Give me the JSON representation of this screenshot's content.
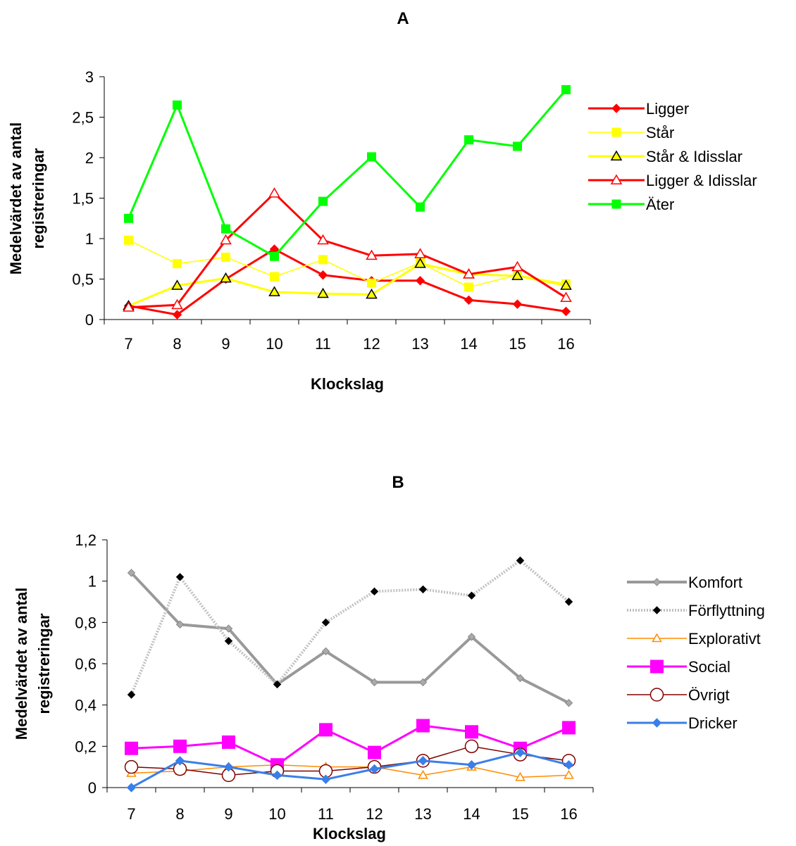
{
  "chart_data": [
    {
      "type": "line",
      "title": "A",
      "xlabel": "Klockslag",
      "ylabel": [
        "Medelvärdet av antal",
        "registreringar"
      ],
      "categories": [
        "7",
        "8",
        "9",
        "10",
        "11",
        "12",
        "13",
        "14",
        "15",
        "16"
      ],
      "ylim": [
        0,
        3
      ],
      "yticks": [
        0,
        0.5,
        1,
        1.5,
        2,
        2.5,
        3
      ],
      "ytick_labels": [
        "0",
        "0,5",
        "1",
        "1,5",
        "2",
        "2,5",
        "3"
      ],
      "legend_position": "right",
      "series": [
        {
          "name": "Ligger",
          "color": "#ff0000",
          "width": 3,
          "marker": "diamond",
          "marker_fill": "#ff0000",
          "marker_stroke": "#ff0000",
          "marker_size": 6,
          "values": [
            0.17,
            0.06,
            0.5,
            0.87,
            0.55,
            0.48,
            0.48,
            0.24,
            0.19,
            0.1
          ]
        },
        {
          "name": "Står",
          "color": "#ffff00",
          "width": 1.5,
          "marker": "square",
          "marker_fill": "#ffff00",
          "marker_stroke": "#ffff00",
          "marker_size": 6,
          "values": [
            0.98,
            0.69,
            0.77,
            0.53,
            0.74,
            0.45,
            0.7,
            0.4,
            0.55,
            0.44
          ]
        },
        {
          "name": "Står & Idisslar",
          "color": "#ffff00",
          "width": 3,
          "marker": "triangle",
          "marker_fill": "#ffff00",
          "marker_stroke": "#000000",
          "marker_size": 7,
          "values": [
            0.17,
            0.42,
            0.51,
            0.34,
            0.32,
            0.31,
            0.69,
            0.56,
            0.54,
            0.42
          ]
        },
        {
          "name": "Ligger & Idisslar",
          "color": "#ff0000",
          "width": 3,
          "marker": "triangle",
          "marker_fill": "#ffffff",
          "marker_stroke": "#ff0000",
          "marker_size": 7,
          "values": [
            0.15,
            0.18,
            0.98,
            1.56,
            0.98,
            0.79,
            0.81,
            0.56,
            0.65,
            0.27
          ]
        },
        {
          "name": "Äter",
          "color": "#00ff00",
          "width": 3,
          "marker": "square",
          "marker_fill": "#00ff00",
          "marker_stroke": "#00ff00",
          "marker_size": 6,
          "values": [
            1.25,
            2.65,
            1.12,
            0.78,
            1.46,
            2.01,
            1.39,
            2.22,
            2.14,
            2.84
          ]
        }
      ]
    },
    {
      "type": "line",
      "title": "B",
      "xlabel": "Klockslag",
      "ylabel": [
        "Medelvärdet av antal",
        "registreringar"
      ],
      "categories": [
        "7",
        "8",
        "9",
        "10",
        "11",
        "12",
        "13",
        "14",
        "15",
        "16"
      ],
      "ylim": [
        0,
        1.2
      ],
      "yticks": [
        0,
        0.2,
        0.4,
        0.6,
        0.8,
        1.0,
        1.2
      ],
      "ytick_labels": [
        "0",
        "0,2",
        "0,4",
        "0,6",
        "0,8",
        "1",
        "1,2"
      ],
      "legend_position": "right",
      "series": [
        {
          "name": "Komfort",
          "color": "#999999",
          "width": 4,
          "marker": "diamond",
          "marker_fill": "#aaaaaa",
          "marker_stroke": "#888888",
          "marker_size": 5,
          "values": [
            1.04,
            0.79,
            0.77,
            0.5,
            0.66,
            0.51,
            0.51,
            0.73,
            0.53,
            0.41
          ]
        },
        {
          "name": "Förflyttning",
          "color": "#c0c0c0",
          "width": 4,
          "dash": "2,2",
          "marker": "diamond",
          "marker_fill": "#000000",
          "marker_stroke": "#000000",
          "marker_size": 5,
          "values": [
            0.45,
            1.02,
            0.71,
            0.5,
            0.8,
            0.95,
            0.96,
            0.93,
            1.1,
            0.9
          ]
        },
        {
          "name": "Explorativt",
          "color": "#ff8c00",
          "width": 1.5,
          "marker": "triangle",
          "marker_fill": "#ffffff",
          "marker_stroke": "#ff8c00",
          "marker_size": 6,
          "values": [
            0.07,
            0.08,
            0.1,
            0.11,
            0.1,
            0.1,
            0.06,
            0.1,
            0.05,
            0.06
          ]
        },
        {
          "name": "Social",
          "color": "#ff00ff",
          "width": 3,
          "marker": "square",
          "marker_fill": "#ff00ff",
          "marker_stroke": "#ff00ff",
          "marker_size": 9,
          "values": [
            0.19,
            0.2,
            0.22,
            0.11,
            0.28,
            0.17,
            0.3,
            0.27,
            0.19,
            0.29
          ]
        },
        {
          "name": "Övrigt",
          "color": "#800000",
          "width": 1.5,
          "marker": "circle",
          "marker_fill": "#ffffff",
          "marker_stroke": "#800000",
          "marker_size": 9,
          "values": [
            0.1,
            0.09,
            0.06,
            0.08,
            0.08,
            0.1,
            0.13,
            0.2,
            0.16,
            0.13
          ]
        },
        {
          "name": "Dricker",
          "color": "#3a7fe8",
          "width": 3,
          "marker": "diamond",
          "marker_fill": "#3a7fe8",
          "marker_stroke": "#3a7fe8",
          "marker_size": 6,
          "values": [
            0.0,
            0.13,
            0.1,
            0.06,
            0.04,
            0.09,
            0.13,
            0.11,
            0.17,
            0.11
          ]
        }
      ]
    }
  ]
}
